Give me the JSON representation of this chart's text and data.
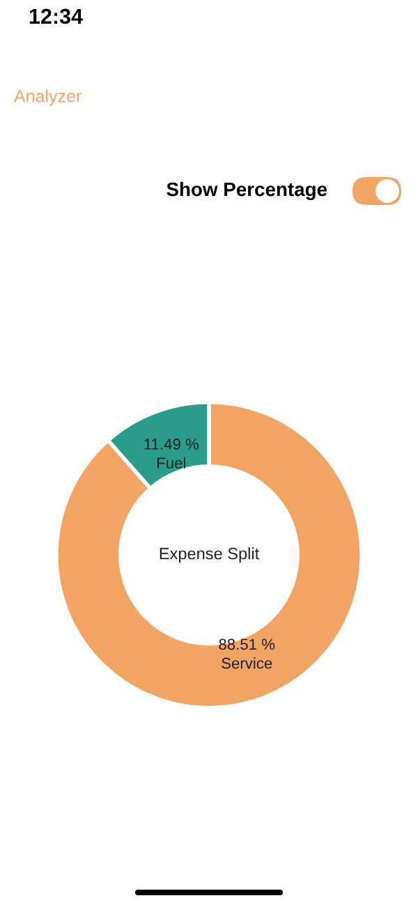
{
  "chart_data": {
    "type": "donut",
    "title": "Expense Split",
    "categories": [
      "Service",
      "Fuel"
    ],
    "values": [
      88.51,
      11.49
    ],
    "colors": [
      "#f2a465",
      "#2a9d8a"
    ],
    "value_labels": [
      "88.51 %",
      "11.49 %"
    ],
    "annotations": [
      "12:34",
      "Analyzer",
      "Show Percentage"
    ]
  }
}
